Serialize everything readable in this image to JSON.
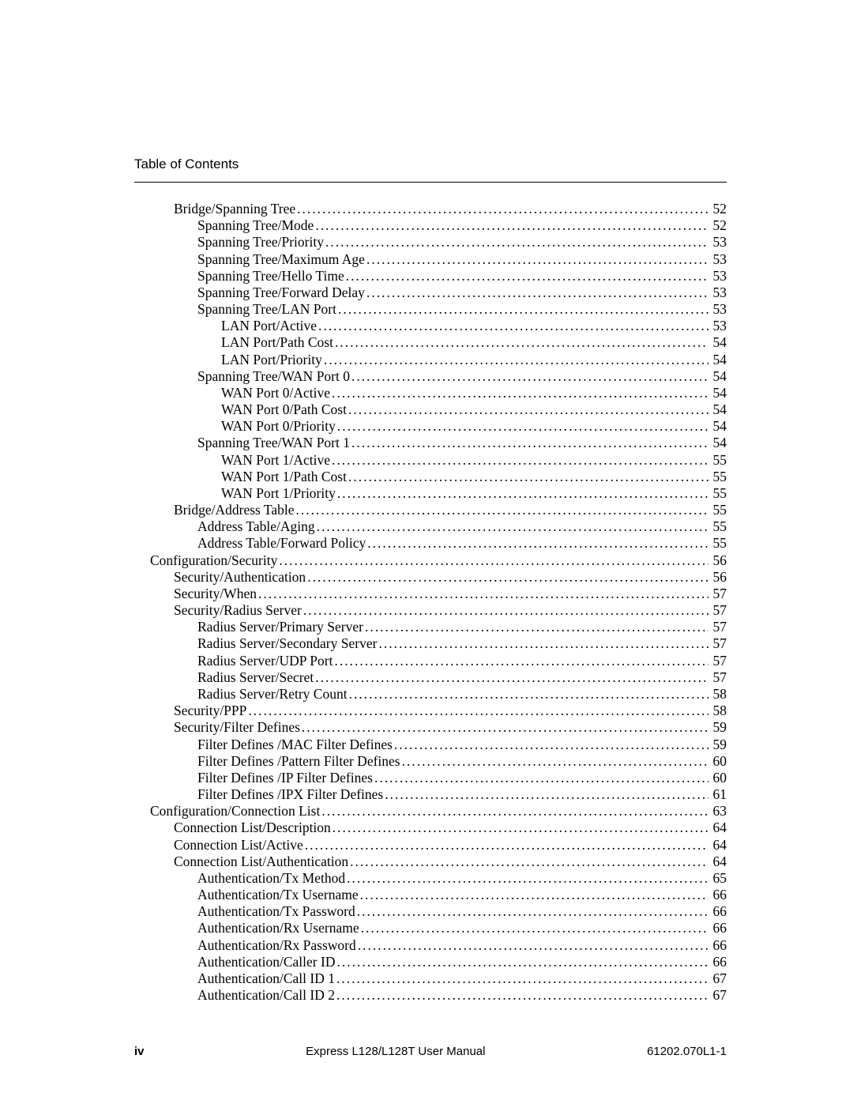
{
  "header": {
    "title": "Table of Contents"
  },
  "footer": {
    "page_number": "iv",
    "center": "Express L128/L128T User Manual",
    "right": "61202.070L1-1"
  },
  "toc": {
    "entries": [
      {
        "label": "Bridge/Spanning Tree",
        "page": "52",
        "indent": 0
      },
      {
        "label": "Spanning Tree/Mode",
        "page": "52",
        "indent": 1
      },
      {
        "label": "Spanning Tree/Priority",
        "page": "53",
        "indent": 1
      },
      {
        "label": "Spanning Tree/Maximum Age",
        "page": "53",
        "indent": 1
      },
      {
        "label": "Spanning Tree/Hello Time",
        "page": "53",
        "indent": 1
      },
      {
        "label": "Spanning Tree/Forward Delay",
        "page": "53",
        "indent": 1
      },
      {
        "label": "Spanning Tree/LAN Port",
        "page": "53",
        "indent": 1
      },
      {
        "label": "LAN Port/Active",
        "page": "53",
        "indent": 2
      },
      {
        "label": "LAN Port/Path Cost",
        "page": "54",
        "indent": 2
      },
      {
        "label": "LAN Port/Priority",
        "page": "54",
        "indent": 2
      },
      {
        "label": "Spanning Tree/WAN Port 0",
        "page": "54",
        "indent": 1
      },
      {
        "label": "WAN Port 0/Active",
        "page": "54",
        "indent": 2
      },
      {
        "label": "WAN Port 0/Path Cost",
        "page": "54",
        "indent": 2
      },
      {
        "label": "WAN Port 0/Priority",
        "page": "54",
        "indent": 2
      },
      {
        "label": "Spanning Tree/WAN Port 1",
        "page": "54",
        "indent": 1
      },
      {
        "label": "WAN Port 1/Active",
        "page": "55",
        "indent": 2
      },
      {
        "label": "WAN Port 1/Path Cost",
        "page": "55",
        "indent": 2
      },
      {
        "label": "WAN Port 1/Priority",
        "page": "55",
        "indent": 2
      },
      {
        "label": "Bridge/Address Table",
        "page": "55",
        "indent": 0
      },
      {
        "label": "Address Table/Aging",
        "page": "55",
        "indent": 1
      },
      {
        "label": "Address Table/Forward Policy",
        "page": "55",
        "indent": 1
      },
      {
        "label": "Configuration/Security",
        "page": "56",
        "indent": 0,
        "outdent": true
      },
      {
        "label": "Security/Authentication",
        "page": "56",
        "indent": 0
      },
      {
        "label": "Security/When",
        "page": "57",
        "indent": 0
      },
      {
        "label": "Security/Radius Server",
        "page": "57",
        "indent": 0
      },
      {
        "label": "Radius Server/Primary Server",
        "page": "57",
        "indent": 1
      },
      {
        "label": "Radius Server/Secondary Server",
        "page": "57",
        "indent": 1
      },
      {
        "label": "Radius Server/UDP Port",
        "page": "57",
        "indent": 1
      },
      {
        "label": "Radius Server/Secret",
        "page": "57",
        "indent": 1
      },
      {
        "label": "Radius Server/Retry Count",
        "page": "58",
        "indent": 1
      },
      {
        "label": "Security/PPP",
        "page": "58",
        "indent": 0
      },
      {
        "label": "Security/Filter Defines",
        "page": "59",
        "indent": 0
      },
      {
        "label": "Filter Defines /MAC Filter Defines",
        "page": "59",
        "indent": 1
      },
      {
        "label": "Filter Defines /Pattern Filter Defines",
        "page": "60",
        "indent": 1
      },
      {
        "label": "Filter Defines /IP Filter Defines",
        "page": "60",
        "indent": 1
      },
      {
        "label": "Filter Defines /IPX Filter Defines",
        "page": "61",
        "indent": 1
      },
      {
        "label": "Configuration/Connection List",
        "page": "63",
        "indent": 0,
        "outdent": true
      },
      {
        "label": "Connection List/Description",
        "page": "64",
        "indent": 0
      },
      {
        "label": "Connection List/Active",
        "page": "64",
        "indent": 0
      },
      {
        "label": "Connection List/Authentication",
        "page": "64",
        "indent": 0
      },
      {
        "label": "Authentication/Tx Method",
        "page": "65",
        "indent": 1
      },
      {
        "label": "Authentication/Tx Username",
        "page": "66",
        "indent": 1
      },
      {
        "label": "Authentication/Tx Password",
        "page": "66",
        "indent": 1
      },
      {
        "label": "Authentication/Rx Username",
        "page": "66",
        "indent": 1
      },
      {
        "label": "Authentication/Rx Password",
        "page": "66",
        "indent": 1
      },
      {
        "label": "Authentication/Caller ID",
        "page": "66",
        "indent": 1
      },
      {
        "label": "Authentication/Call ID 1",
        "page": "67",
        "indent": 1
      },
      {
        "label": "Authentication/Call ID 2",
        "page": "67",
        "indent": 1
      }
    ]
  }
}
